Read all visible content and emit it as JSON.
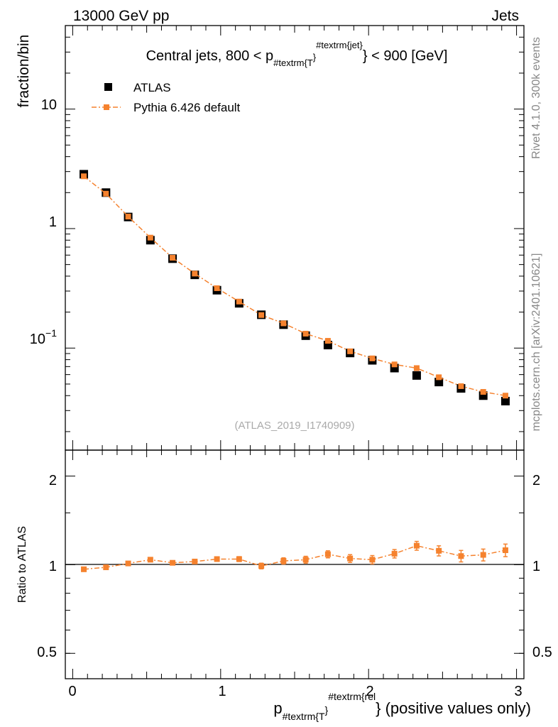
{
  "header": {
    "energy_label": "13000 GeV pp",
    "category_label": "Jets"
  },
  "side_labels": {
    "rivet": "Rivet 4.1.0,  300k events",
    "mcplots": "mcplots.cern.ch [arXiv:2401.10621]"
  },
  "watermark": "(ATLAS_2019_I1740909)",
  "colors": {
    "data": "#000000",
    "mc": "#f5822e",
    "axis": "#000000",
    "side_text": "#888888"
  },
  "chart_data": [
    {
      "type": "scatter",
      "panel": "main",
      "title_parts": {
        "prefix": "Central jets, 800 < p",
        "sub": "#textrm{T",
        "close": "}",
        "sup": "#textrm{jet}",
        "suffix": "} < 900 [GeV]"
      },
      "ylabel": "fraction/bin",
      "yscale": "log",
      "ylim": [
        0.014,
        50
      ],
      "xlim": [
        -0.05,
        3.05
      ],
      "y_tick_labels": [
        {
          "value": 10,
          "label": "10"
        },
        {
          "value": 1,
          "label": "1"
        },
        {
          "value": 0.1,
          "label": "10",
          "sup": "−1"
        }
      ],
      "legend": {
        "placement": "top-left",
        "entries": [
          {
            "name": "ATLAS",
            "marker": "square-black"
          },
          {
            "name": "Pythia 6.426 default",
            "marker": "square-orange-dashdot"
          }
        ]
      },
      "x": [
        0.075,
        0.225,
        0.375,
        0.525,
        0.675,
        0.825,
        0.975,
        1.125,
        1.275,
        1.425,
        1.575,
        1.725,
        1.875,
        2.025,
        2.175,
        2.325,
        2.475,
        2.625,
        2.775,
        2.925
      ],
      "series": [
        {
          "name": "ATLAS",
          "values": [
            2.85,
            2.0,
            1.25,
            0.8,
            0.56,
            0.41,
            0.305,
            0.237,
            0.19,
            0.157,
            0.127,
            0.106,
            0.091,
            0.079,
            0.068,
            0.059,
            0.052,
            0.046,
            0.04,
            0.036
          ]
        },
        {
          "name": "Pythia 6.426 default",
          "values": [
            2.74,
            1.96,
            1.26,
            0.84,
            0.57,
            0.42,
            0.317,
            0.245,
            0.189,
            0.161,
            0.132,
            0.115,
            0.094,
            0.082,
            0.073,
            0.068,
            0.057,
            0.048,
            0.043,
            0.04
          ]
        }
      ]
    },
    {
      "type": "scatter",
      "panel": "ratio",
      "ylabel": "Ratio to ATLAS",
      "yscale": "log",
      "ylim": [
        0.41,
        2.45
      ],
      "xlim": [
        -0.05,
        3.05
      ],
      "reference_line": 1,
      "y_tick_labels": [
        {
          "value": 2,
          "label": "2"
        },
        {
          "value": 1,
          "label": "1"
        },
        {
          "value": 0.5,
          "label": "0.5"
        }
      ],
      "x_tick_labels": [
        {
          "value": 0,
          "label": "0"
        },
        {
          "value": 1,
          "label": "1"
        },
        {
          "value": 2,
          "label": "2"
        },
        {
          "value": 3,
          "label": "3"
        }
      ],
      "xlabel_parts": {
        "prefix": "p",
        "sub": "#textrm{T",
        "close": "}",
        "sup": "#textrm{rel",
        "suffix": "} (positive values only)"
      },
      "x": [
        0.075,
        0.225,
        0.375,
        0.525,
        0.675,
        0.825,
        0.975,
        1.125,
        1.275,
        1.425,
        1.575,
        1.725,
        1.875,
        2.025,
        2.175,
        2.325,
        2.475,
        2.625,
        2.775,
        2.925
      ],
      "series": [
        {
          "name": "Pythia 6.426 default",
          "values": [
            0.965,
            0.98,
            1.01,
            1.04,
            1.015,
            1.025,
            1.045,
            1.045,
            0.99,
            1.03,
            1.04,
            1.085,
            1.05,
            1.04,
            1.09,
            1.16,
            1.115,
            1.07,
            1.08,
            1.12
          ],
          "errors": [
            0.01,
            0.01,
            0.012,
            0.014,
            0.014,
            0.016,
            0.018,
            0.02,
            0.022,
            0.025,
            0.028,
            0.03,
            0.032,
            0.034,
            0.036,
            0.04,
            0.044,
            0.048,
            0.05,
            0.055
          ]
        }
      ]
    }
  ]
}
